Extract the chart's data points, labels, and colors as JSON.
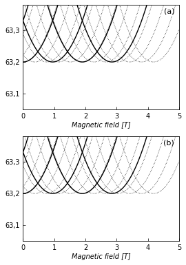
{
  "xlim": [
    0,
    5
  ],
  "ylim_a": [
    63.05,
    63.38
  ],
  "ylim_b": [
    63.05,
    63.38
  ],
  "yticks": [
    63.1,
    63.2,
    63.3
  ],
  "ytick_labels": [
    "63,1",
    "63,2",
    "63,3"
  ],
  "xticks": [
    0,
    1,
    2,
    3,
    4,
    5
  ],
  "xlabel": "Magnetic field [T]",
  "label_a": "(a)",
  "label_b": "(b)",
  "E0": 63.2,
  "hbar_omega_c_factor": 0.06,
  "figsize": [
    2.7,
    3.85
  ],
  "dpi": 100,
  "bg_color": "#f0f0f0",
  "solid_color": "black",
  "dot_color": "black",
  "n_solid": 4,
  "n_dot": 8,
  "coupling_a": 0.012,
  "coupling_b": 0.0
}
